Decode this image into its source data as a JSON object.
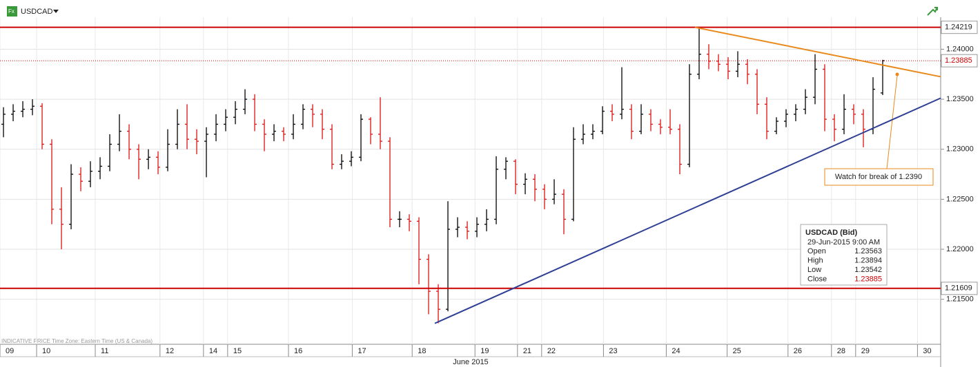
{
  "header": {
    "symbol": "USDCAD",
    "footnote": "INDICATIVE PRICE   Time Zone: Eastern Time (US & Canada)"
  },
  "chart_data": {
    "type": "ohlc",
    "up_color": "#000000",
    "down_color": "#dd1111",
    "x_axis_label": "June 2015",
    "xlim": [
      -0.36,
      97
    ],
    "xticks": [
      {
        "value": -0.36,
        "label": "09"
      },
      {
        "value": 3.43,
        "label": "10"
      },
      {
        "value": 9.5,
        "label": "11"
      },
      {
        "value": 16.2,
        "label": "12"
      },
      {
        "value": 20.7,
        "label": "14"
      },
      {
        "value": 23.2,
        "label": "15"
      },
      {
        "value": 29.5,
        "label": "16"
      },
      {
        "value": 36.1,
        "label": "17"
      },
      {
        "value": 42.3,
        "label": "18"
      },
      {
        "value": 48.8,
        "label": "19"
      },
      {
        "value": 53.2,
        "label": "21"
      },
      {
        "value": 55.7,
        "label": "22"
      },
      {
        "value": 62.1,
        "label": "23"
      },
      {
        "value": 68.6,
        "label": "24"
      },
      {
        "value": 74.9,
        "label": "25"
      },
      {
        "value": 81.2,
        "label": "26"
      },
      {
        "value": 85.7,
        "label": "28"
      },
      {
        "value": 88.2,
        "label": "29"
      },
      {
        "value": 94.6,
        "label": "30"
      }
    ],
    "ylim": [
      1.2105,
      1.2432
    ],
    "yticks": [
      {
        "value": 1.215,
        "label": "1.21500"
      },
      {
        "value": 1.22,
        "label": "1.22000"
      },
      {
        "value": 1.225,
        "label": "1.22500"
      },
      {
        "value": 1.23,
        "label": "1.23000"
      },
      {
        "value": 1.235,
        "label": "1.23500"
      },
      {
        "value": 1.24,
        "label": "1.24000"
      }
    ],
    "grid": true,
    "levels": [
      {
        "value": 1.24219,
        "color": "#cc0000"
      },
      {
        "value": 1.21609,
        "color": "#cc0000"
      }
    ],
    "last_price": {
      "value": 1.23885,
      "color": "#cc0000"
    },
    "trendlines": [
      {
        "color": "#e8891a",
        "points": [
          [
            71.57,
            1.24219
          ],
          [
            97,
            1.23725
          ]
        ]
      },
      {
        "color": "#2e3f94",
        "points": [
          [
            44.64,
            1.21259
          ],
          [
            97,
            1.23511
          ]
        ]
      }
    ],
    "annotation": "Watch for break of 1.2390",
    "info_box": {
      "title": "USDCAD (Bid)",
      "time": "29-Jun-2015 9:00 AM",
      "labels": [
        "Open",
        "High",
        "Low",
        "Close"
      ]
    },
    "ohlc": [
      [
        1.2325,
        1.2342,
        1.2312,
        1.2335
      ],
      [
        1.2335,
        1.2345,
        1.2328,
        1.2338
      ],
      [
        1.2338,
        1.2348,
        1.2332,
        1.234
      ],
      [
        1.234,
        1.235,
        1.2334,
        1.2343
      ],
      [
        1.2343,
        1.2346,
        1.23,
        1.2305
      ],
      [
        1.2305,
        1.231,
        1.2225,
        1.224
      ],
      [
        1.224,
        1.2262,
        1.22,
        1.2225
      ],
      [
        1.2225,
        1.2285,
        1.222,
        1.2275
      ],
      [
        1.2275,
        1.2282,
        1.2258,
        1.2268
      ],
      [
        1.2268,
        1.2288,
        1.2262,
        1.2278
      ],
      [
        1.2278,
        1.2292,
        1.227,
        1.2283
      ],
      [
        1.2283,
        1.2315,
        1.2278,
        1.2305
      ],
      [
        1.2305,
        1.2335,
        1.2298,
        1.2318
      ],
      [
        1.2318,
        1.2325,
        1.229,
        1.23
      ],
      [
        1.23,
        1.2305,
        1.227,
        1.229
      ],
      [
        1.229,
        1.23,
        1.228,
        1.2292
      ],
      [
        1.2292,
        1.2298,
        1.2275,
        1.2282
      ],
      [
        1.2282,
        1.232,
        1.2278,
        1.2305
      ],
      [
        1.2305,
        1.234,
        1.23,
        1.2325
      ],
      [
        1.2325,
        1.2345,
        1.23,
        1.231
      ],
      [
        1.231,
        1.232,
        1.2295,
        1.2308
      ],
      [
        1.2308,
        1.2322,
        1.2272,
        1.2315
      ],
      [
        1.2315,
        1.2335,
        1.2308,
        1.2325
      ],
      [
        1.2325,
        1.234,
        1.2318,
        1.2332
      ],
      [
        1.2332,
        1.2348,
        1.2325,
        1.234
      ],
      [
        1.234,
        1.236,
        1.2335,
        1.235
      ],
      [
        1.235,
        1.2355,
        1.2318,
        1.2325
      ],
      [
        1.2325,
        1.233,
        1.2298,
        1.2315
      ],
      [
        1.2315,
        1.2325,
        1.2308,
        1.2318
      ],
      [
        1.2318,
        1.2322,
        1.2308,
        1.2315
      ],
      [
        1.2315,
        1.2335,
        1.231,
        1.2325
      ],
      [
        1.2325,
        1.2345,
        1.232,
        1.234
      ],
      [
        1.234,
        1.2345,
        1.2322,
        1.2335
      ],
      [
        1.2335,
        1.234,
        1.231,
        1.232
      ],
      [
        1.232,
        1.2325,
        1.228,
        1.2285
      ],
      [
        1.2285,
        1.2295,
        1.228,
        1.2288
      ],
      [
        1.2288,
        1.2298,
        1.2283,
        1.2292
      ],
      [
        1.2292,
        1.2335,
        1.2288,
        1.233
      ],
      [
        1.233,
        1.2332,
        1.2305,
        1.2315
      ],
      [
        1.2315,
        1.2352,
        1.23,
        1.2308
      ],
      [
        1.2308,
        1.2312,
        1.2222,
        1.223
      ],
      [
        1.223,
        1.2238,
        1.2222,
        1.223
      ],
      [
        1.223,
        1.2235,
        1.2218,
        1.2228
      ],
      [
        1.2228,
        1.2232,
        1.2165,
        1.219
      ],
      [
        1.219,
        1.2195,
        1.2135,
        1.2158
      ],
      [
        1.2158,
        1.2165,
        1.2126,
        1.214
      ],
      [
        1.214,
        1.2248,
        1.2138,
        1.222
      ],
      [
        1.222,
        1.2232,
        1.2212,
        1.2222
      ],
      [
        1.2222,
        1.2228,
        1.221,
        1.2218
      ],
      [
        1.2218,
        1.2232,
        1.2212,
        1.2225
      ],
      [
        1.2225,
        1.224,
        1.2218,
        1.223
      ],
      [
        1.223,
        1.2293,
        1.2225,
        1.228
      ],
      [
        1.228,
        1.2292,
        1.227,
        1.2288
      ],
      [
        1.2288,
        1.229,
        1.2255,
        1.2265
      ],
      [
        1.2265,
        1.2276,
        1.2255,
        1.227
      ],
      [
        1.227,
        1.2275,
        1.2248,
        1.226
      ],
      [
        1.226,
        1.2265,
        1.224,
        1.225
      ],
      [
        1.225,
        1.227,
        1.2245,
        1.2255
      ],
      [
        1.2255,
        1.226,
        1.2215,
        1.223
      ],
      [
        1.223,
        1.2322,
        1.2228,
        1.231
      ],
      [
        1.231,
        1.2325,
        1.2305,
        1.2315
      ],
      [
        1.2315,
        1.2325,
        1.231,
        1.2318
      ],
      [
        1.2318,
        1.2343,
        1.2315,
        1.2338
      ],
      [
        1.2338,
        1.2345,
        1.2328,
        1.2335
      ],
      [
        1.2335,
        1.2382,
        1.233,
        1.234
      ],
      [
        1.234,
        1.2345,
        1.231,
        1.2318
      ],
      [
        1.2318,
        1.2345,
        1.2315,
        1.2335
      ],
      [
        1.2335,
        1.234,
        1.2318,
        1.2325
      ],
      [
        1.2325,
        1.233,
        1.2315,
        1.2322
      ],
      [
        1.2322,
        1.234,
        1.2315,
        1.232
      ],
      [
        1.232,
        1.2325,
        1.2275,
        1.2285
      ],
      [
        1.2285,
        1.2385,
        1.2282,
        1.2375
      ],
      [
        1.2375,
        1.24219,
        1.237,
        1.2395
      ],
      [
        1.2395,
        1.2405,
        1.238,
        1.2388
      ],
      [
        1.2388,
        1.2395,
        1.2378,
        1.2385
      ],
      [
        1.2385,
        1.2392,
        1.237,
        1.2378
      ],
      [
        1.2378,
        1.2398,
        1.2372,
        1.2385
      ],
      [
        1.2385,
        1.239,
        1.2365,
        1.2375
      ],
      [
        1.2375,
        1.238,
        1.2335,
        1.2345
      ],
      [
        1.2345,
        1.2352,
        1.231,
        1.2318
      ],
      [
        1.2318,
        1.2332,
        1.2315,
        1.2328
      ],
      [
        1.2328,
        1.234,
        1.2322,
        1.2335
      ],
      [
        1.2335,
        1.2345,
        1.2328,
        1.234
      ],
      [
        1.234,
        1.236,
        1.2335,
        1.2352
      ],
      [
        1.2352,
        1.2395,
        1.2345,
        1.238
      ],
      [
        1.238,
        1.2385,
        1.2318,
        1.233
      ],
      [
        1.233,
        1.2335,
        1.2308,
        1.232
      ],
      [
        1.232,
        1.2355,
        1.2315,
        1.234
      ],
      [
        1.234,
        1.2345,
        1.2325,
        1.2335
      ],
      [
        1.2335,
        1.234,
        1.2302,
        1.232
      ],
      [
        1.232,
        1.2372,
        1.2315,
        1.236
      ],
      [
        1.23563,
        1.23894,
        1.23542,
        1.23885
      ]
    ]
  }
}
